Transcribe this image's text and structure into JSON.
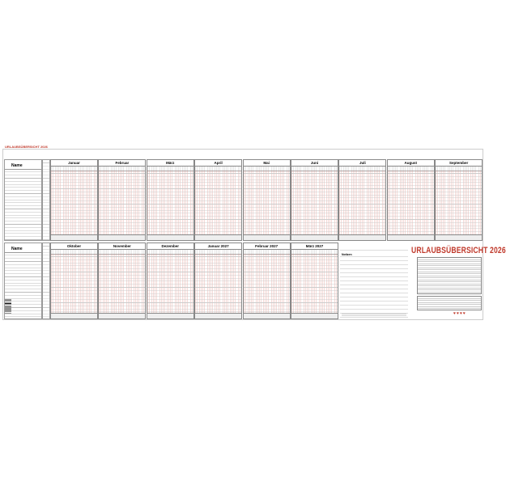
{
  "header": {
    "small_title": "URLAUBSÜBERSICHT 2026",
    "main_title": "URLAUBSÜBERSICHT 2026"
  },
  "name_label": "Name",
  "notes_label": "Notizen",
  "top_row": {
    "months": [
      "Januar",
      "Februar",
      "März",
      "April",
      "Mai",
      "Juni",
      "Juli",
      "August",
      "September"
    ]
  },
  "bottom_row": {
    "months": [
      "Oktober",
      "November",
      "Dezember",
      "Januar 2027",
      "Februar 2027",
      "März 2027"
    ]
  },
  "colors": {
    "accent": "#c0392b",
    "grid_day_line": "#dc786e",
    "grid_row_line": "#cccccc"
  },
  "legend_icons": [
    "heart-icon",
    "heart-icon",
    "heart-icon",
    "heart-icon"
  ]
}
